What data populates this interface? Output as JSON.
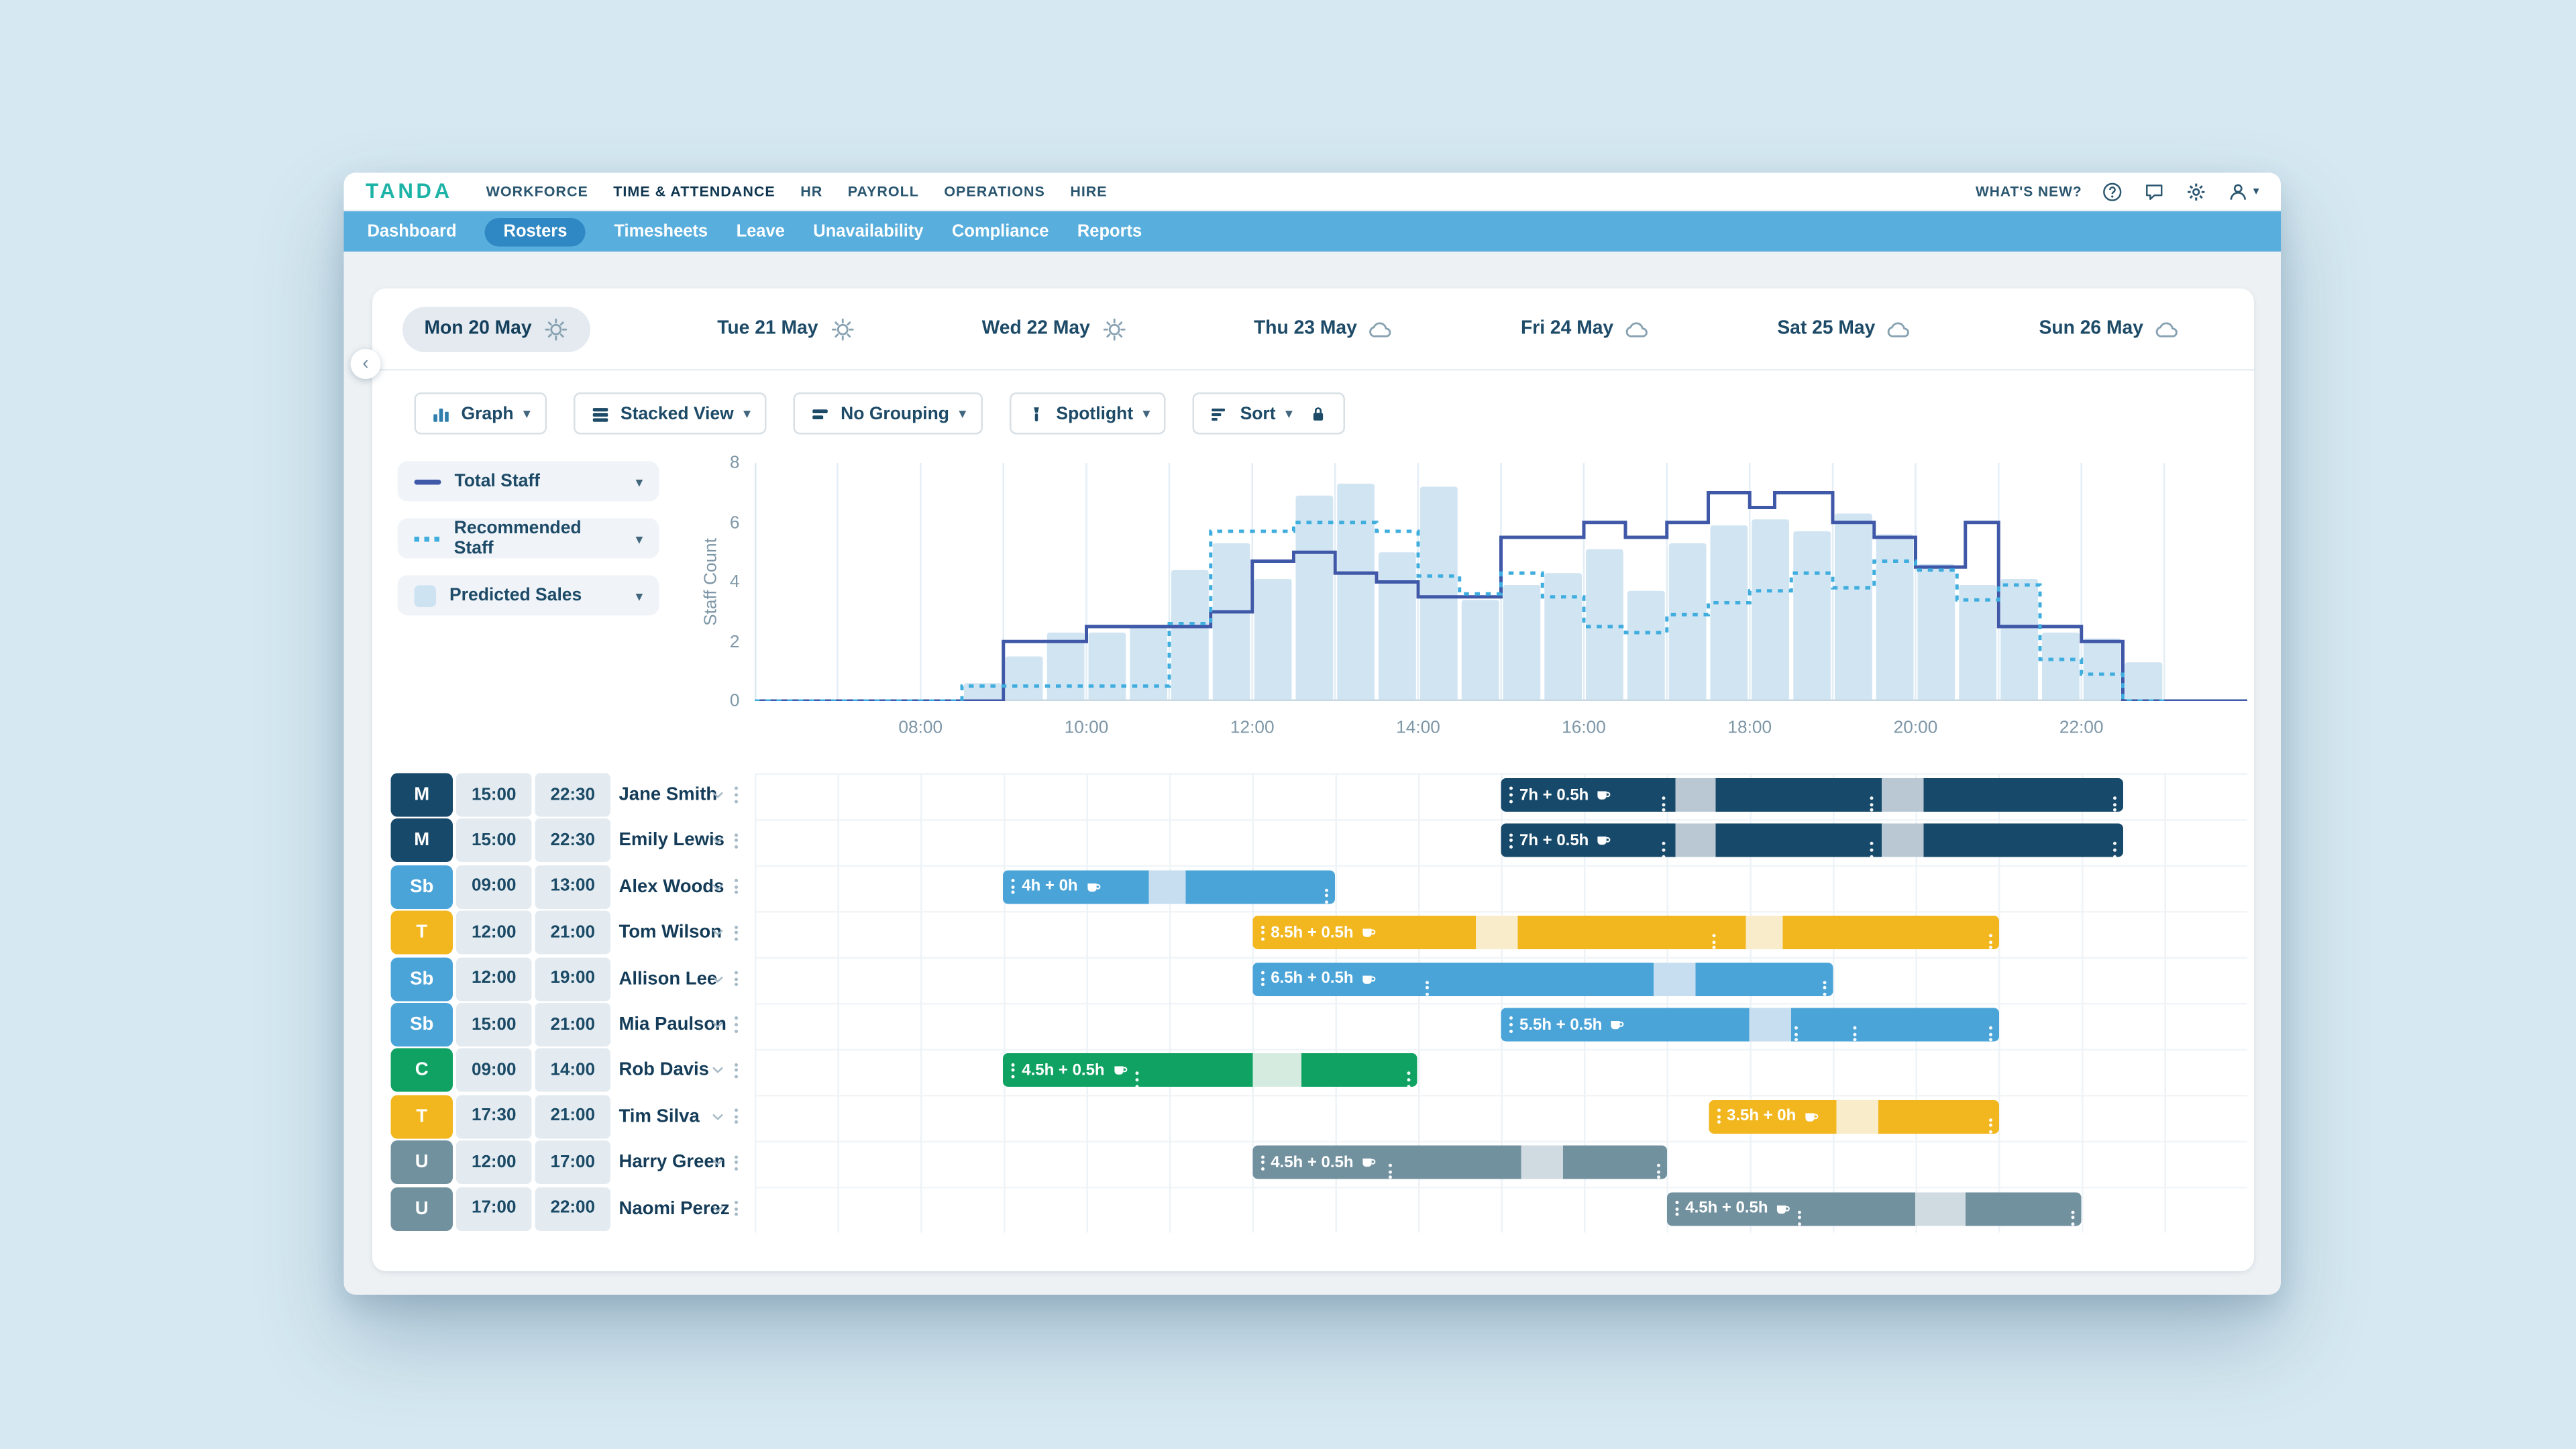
{
  "page": {
    "background": "#d6e9f2"
  },
  "topnav": {
    "brand": "TANDA",
    "items": [
      {
        "label": "WORKFORCE",
        "active": false
      },
      {
        "label": "TIME & ATTENDANCE",
        "active": true
      },
      {
        "label": "HR",
        "active": false
      },
      {
        "label": "PAYROLL",
        "active": false
      },
      {
        "label": "OPERATIONS",
        "active": false
      },
      {
        "label": "HIRE",
        "active": false
      }
    ],
    "whats_new": "WHAT'S NEW?",
    "icons": [
      "help",
      "chat",
      "gear",
      "user"
    ]
  },
  "subnav": {
    "items": [
      {
        "label": "Dashboard",
        "active": false
      },
      {
        "label": "Rosters",
        "active": true
      },
      {
        "label": "Timesheets",
        "active": false
      },
      {
        "label": "Leave",
        "active": false
      },
      {
        "label": "Unavailability",
        "active": false
      },
      {
        "label": "Compliance",
        "active": false
      },
      {
        "label": "Reports",
        "active": false
      }
    ]
  },
  "dates": [
    {
      "label": "Mon 20 May",
      "weather": "sunny",
      "selected": true
    },
    {
      "label": "Tue 21 May",
      "weather": "sunny",
      "selected": false
    },
    {
      "label": "Wed 22 May",
      "weather": "sunny",
      "selected": false
    },
    {
      "label": "Thu 23 May",
      "weather": "cloudy",
      "selected": false
    },
    {
      "label": "Fri 24 May",
      "weather": "cloudy",
      "selected": false
    },
    {
      "label": "Sat 25 May",
      "weather": "cloudy",
      "selected": false
    },
    {
      "label": "Sun 26 May",
      "weather": "cloudy",
      "selected": false
    }
  ],
  "toolbar": [
    {
      "label": "Graph",
      "icon": "bar-chart",
      "caret": true,
      "lock": false
    },
    {
      "label": "Stacked View",
      "icon": "stacked",
      "caret": true,
      "lock": false
    },
    {
      "label": "No Grouping",
      "icon": "grouping",
      "caret": true,
      "lock": false
    },
    {
      "label": "Spotlight",
      "icon": "spotlight",
      "caret": true,
      "lock": false
    },
    {
      "label": "Sort",
      "icon": "sort",
      "caret": true,
      "lock": true
    }
  ],
  "legend": [
    {
      "label": "Total Staff",
      "swatch": "solid-line",
      "color": "#3f58a8"
    },
    {
      "label": "Recommended Staff",
      "swatch": "dotted-line",
      "color": "#3fadde"
    },
    {
      "label": "Predicted Sales",
      "swatch": "area",
      "color": "#cde3f2"
    }
  ],
  "chart_data": {
    "type": "combo",
    "title": "",
    "ylabel": "Staff Count",
    "xlabel": "",
    "y_axis": {
      "min": 0,
      "max": 8,
      "ticks": [
        0,
        2,
        4,
        6,
        8
      ]
    },
    "x_axis": {
      "start_hour": 6,
      "end_hour": 24,
      "tick_hours": [
        8,
        10,
        12,
        14,
        16,
        18,
        20,
        22
      ],
      "tick_labels": [
        "08:00",
        "10:00",
        "12:00",
        "14:00",
        "16:00",
        "18:00",
        "20:00",
        "22:00"
      ]
    },
    "grid": "vertical-hourly",
    "legend_position": "left",
    "series": [
      {
        "name": "Total Staff",
        "type": "step-line",
        "line_style": "solid",
        "color": "#3f58a8",
        "steps": [
          [
            6,
            0
          ],
          [
            9,
            2
          ],
          [
            10,
            2.5
          ],
          [
            11.5,
            3
          ],
          [
            12,
            4.7
          ],
          [
            12.5,
            5
          ],
          [
            13,
            4.3
          ],
          [
            13.5,
            4
          ],
          [
            14,
            3.5
          ],
          [
            15,
            5.5
          ],
          [
            16,
            6
          ],
          [
            16.5,
            5.5
          ],
          [
            17,
            6
          ],
          [
            17.5,
            7
          ],
          [
            18,
            6.5
          ],
          [
            18.3,
            7
          ],
          [
            19,
            6
          ],
          [
            19.5,
            5.5
          ],
          [
            20,
            4.5
          ],
          [
            20.6,
            6
          ],
          [
            21,
            2.5
          ],
          [
            22,
            2
          ],
          [
            22.5,
            0
          ]
        ]
      },
      {
        "name": "Recommended Staff",
        "type": "step-line",
        "line_style": "dotted",
        "color": "#3fadde",
        "steps": [
          [
            6,
            0
          ],
          [
            8.5,
            0.5
          ],
          [
            11,
            2.6
          ],
          [
            11.5,
            5.7
          ],
          [
            12.5,
            6
          ],
          [
            13.5,
            5.7
          ],
          [
            14,
            4.2
          ],
          [
            14.5,
            3.6
          ],
          [
            15,
            4.3
          ],
          [
            15.5,
            3.5
          ],
          [
            16,
            2.5
          ],
          [
            16.5,
            2.3
          ],
          [
            17,
            2.9
          ],
          [
            17.5,
            3.3
          ],
          [
            18,
            3.7
          ],
          [
            18.5,
            4.3
          ],
          [
            19,
            3.8
          ],
          [
            19.5,
            4.7
          ],
          [
            20,
            4.4
          ],
          [
            20.5,
            3.4
          ],
          [
            21,
            3.9
          ],
          [
            21.5,
            1.4
          ],
          [
            22,
            0.9
          ],
          [
            22.5,
            0
          ]
        ]
      },
      {
        "name": "Predicted Sales",
        "type": "bar",
        "color": "#cbe1f1",
        "interval_hours": 0.5,
        "points": [
          [
            8.5,
            0.6
          ],
          [
            9,
            1.5
          ],
          [
            9.5,
            2.3
          ],
          [
            10,
            2.3
          ],
          [
            10.5,
            2.5
          ],
          [
            11,
            4.4
          ],
          [
            11.5,
            5.3
          ],
          [
            12,
            4.1
          ],
          [
            12.5,
            6.9
          ],
          [
            13,
            7.3
          ],
          [
            13.5,
            5
          ],
          [
            14,
            7.2
          ],
          [
            14.5,
            3.4
          ],
          [
            15,
            3.9
          ],
          [
            15.5,
            4.3
          ],
          [
            16,
            5.1
          ],
          [
            16.5,
            3.7
          ],
          [
            17,
            5.3
          ],
          [
            17.5,
            5.9
          ],
          [
            18,
            6.1
          ],
          [
            18.5,
            5.7
          ],
          [
            19,
            6.3
          ],
          [
            19.5,
            5.6
          ],
          [
            20,
            4.6
          ],
          [
            20.5,
            3.9
          ],
          [
            21,
            4.1
          ],
          [
            21.5,
            2.3
          ],
          [
            22,
            2.1
          ],
          [
            22.5,
            1.3
          ]
        ]
      }
    ]
  },
  "roster": {
    "type_colors": {
      "M": {
        "main": "#17496a",
        "pale": "#b9c8d3"
      },
      "Sb": {
        "main": "#4ba4d8",
        "pale": "#c6deef"
      },
      "T": {
        "main": "#f2b71f",
        "pale": "#f9ecca"
      },
      "C": {
        "main": "#10a263",
        "pale": "#d5ebdf"
      },
      "U": {
        "main": "#72919f",
        "pale": "#cfdbe1"
      }
    },
    "rows": [
      {
        "badge": "M",
        "start": "15:00",
        "end": "22:30",
        "name": "Jane Smith",
        "shift": {
          "from": 15,
          "to": 22.5,
          "label": "7h + 0.5h",
          "coffee": true,
          "breaks": [
            [
              17.1,
              17.6
            ],
            [
              19.6,
              20.1
            ]
          ],
          "dots": [
            17.0,
            19.5
          ]
        }
      },
      {
        "badge": "M",
        "start": "15:00",
        "end": "22:30",
        "name": "Emily Lewis",
        "shift": {
          "from": 15,
          "to": 22.5,
          "label": "7h + 0.5h",
          "coffee": true,
          "breaks": [
            [
              17.1,
              17.6
            ],
            [
              19.6,
              20.1
            ]
          ],
          "dots": [
            17.0,
            19.5
          ]
        }
      },
      {
        "badge": "Sb",
        "start": "09:00",
        "end": "13:00",
        "name": "Alex Woods",
        "shift": {
          "from": 9,
          "to": 13,
          "label": "4h + 0h",
          "coffee": true,
          "breaks": [
            [
              10.75,
              11.2
            ]
          ],
          "dots": []
        }
      },
      {
        "badge": "T",
        "start": "12:00",
        "end": "21:00",
        "name": "Tom Wilson",
        "shift": {
          "from": 12,
          "to": 21,
          "label": "8.5h + 0.5h",
          "coffee": true,
          "breaks": [
            [
              14.7,
              15.2
            ],
            [
              17.95,
              18.4
            ]
          ],
          "dots": [
            17.6
          ]
        }
      },
      {
        "badge": "Sb",
        "start": "12:00",
        "end": "19:00",
        "name": "Allison Lee",
        "shift": {
          "from": 12,
          "to": 19,
          "label": "6.5h + 0.5h",
          "coffee": true,
          "breaks": [
            [
              16.85,
              17.35
            ]
          ],
          "dots": [
            14.15
          ]
        }
      },
      {
        "badge": "Sb",
        "start": "15:00",
        "end": "21:00",
        "name": "Mia Paulson",
        "shift": {
          "from": 15,
          "to": 21,
          "label": "5.5h + 0.5h",
          "coffee": true,
          "breaks": [
            [
              18.0,
              18.5
            ]
          ],
          "dots": [
            18.6,
            19.3
          ]
        }
      },
      {
        "badge": "C",
        "start": "09:00",
        "end": "14:00",
        "name": "Rob Davis",
        "shift": {
          "from": 9,
          "to": 14,
          "label": "4.5h + 0.5h",
          "coffee": true,
          "breaks": [
            [
              12.0,
              12.6
            ]
          ],
          "dots": [
            10.65
          ]
        }
      },
      {
        "badge": "T",
        "start": "17:30",
        "end": "21:00",
        "name": "Tim Silva",
        "shift": {
          "from": 17.5,
          "to": 21,
          "label": "3.5h + 0h",
          "coffee": true,
          "breaks": [
            [
              19.05,
              19.55
            ]
          ],
          "dots": []
        }
      },
      {
        "badge": "U",
        "start": "12:00",
        "end": "17:00",
        "name": "Harry Green",
        "shift": {
          "from": 12,
          "to": 17,
          "label": "4.5h + 0.5h",
          "coffee": true,
          "breaks": [
            [
              15.25,
              15.75
            ]
          ],
          "dots": [
            13.7
          ]
        }
      },
      {
        "badge": "U",
        "start": "17:00",
        "end": "22:00",
        "name": "Naomi Perez",
        "shift": {
          "from": 17,
          "to": 22,
          "label": "4.5h + 0.5h",
          "coffee": true,
          "breaks": [
            [
              20.0,
              20.6
            ]
          ],
          "dots": [
            18.65
          ]
        }
      }
    ]
  }
}
